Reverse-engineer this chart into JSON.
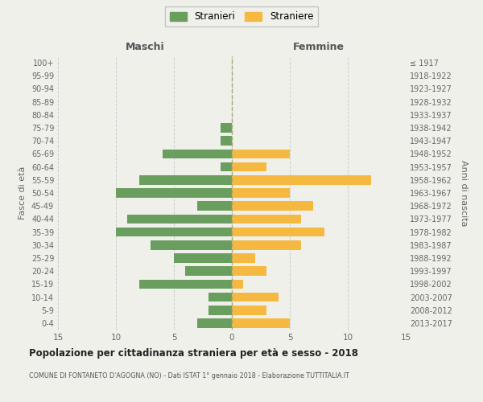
{
  "age_groups": [
    "100+",
    "95-99",
    "90-94",
    "85-89",
    "80-84",
    "75-79",
    "70-74",
    "65-69",
    "60-64",
    "55-59",
    "50-54",
    "45-49",
    "40-44",
    "35-39",
    "30-34",
    "25-29",
    "20-24",
    "15-19",
    "10-14",
    "5-9",
    "0-4"
  ],
  "birth_years": [
    "≤ 1917",
    "1918-1922",
    "1923-1927",
    "1928-1932",
    "1933-1937",
    "1938-1942",
    "1943-1947",
    "1948-1952",
    "1953-1957",
    "1958-1962",
    "1963-1967",
    "1968-1972",
    "1973-1977",
    "1978-1982",
    "1983-1987",
    "1988-1992",
    "1993-1997",
    "1998-2002",
    "2003-2007",
    "2008-2012",
    "2013-2017"
  ],
  "males": [
    0,
    0,
    0,
    0,
    0,
    1,
    1,
    6,
    1,
    8,
    10,
    3,
    9,
    10,
    7,
    5,
    4,
    8,
    2,
    2,
    3
  ],
  "females": [
    0,
    0,
    0,
    0,
    0,
    0,
    0,
    5,
    3,
    12,
    5,
    7,
    6,
    8,
    6,
    2,
    3,
    1,
    4,
    3,
    5
  ],
  "male_color": "#6a9e5f",
  "female_color": "#f5b942",
  "background_color": "#f0f0eb",
  "grid_color": "#cccccc",
  "title": "Popolazione per cittadinanza straniera per età e sesso - 2018",
  "subtitle": "COMUNE DI FONTANETO D'AGOGNA (NO) - Dati ISTAT 1° gennaio 2018 - Elaborazione TUTTITALIA.IT",
  "ylabel_left": "Fasce di età",
  "ylabel_right": "Anni di nascita",
  "xlabel_left": "Maschi",
  "xlabel_right": "Femmine",
  "legend_male": "Stranieri",
  "legend_female": "Straniere",
  "xlim": 15
}
